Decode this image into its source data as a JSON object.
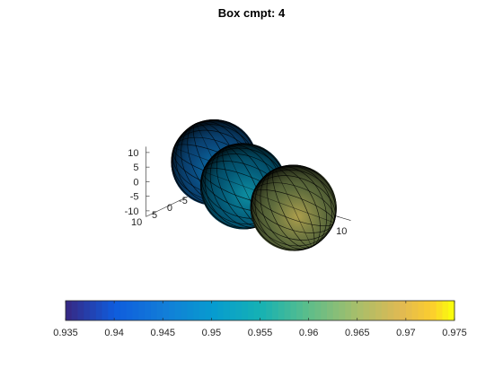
{
  "chart_data": {
    "type": "scatter",
    "title": "Box cmpt: 4",
    "plot_kind": "3d-mesh-surface",
    "axes": {
      "x": {
        "ticks": [
          "-10",
          "0",
          "10"
        ],
        "range": [
          -12,
          12
        ]
      },
      "y": {
        "ticks": [
          "-10",
          "-5",
          "0",
          "5",
          "10"
        ],
        "range": [
          -12,
          12
        ]
      },
      "z": {
        "ticks": [
          "-10",
          "-5",
          "0",
          "5",
          "10"
        ],
        "range": [
          -12,
          12
        ]
      }
    },
    "objects": [
      {
        "name": "sphere",
        "center": [
          -4,
          4,
          7
        ],
        "radius": 6,
        "value": 0.945
      },
      {
        "name": "sphere",
        "center": [
          -2,
          -2,
          -3
        ],
        "radius": 6,
        "value": 0.95
      },
      {
        "name": "sphere",
        "center": [
          6,
          -4,
          -7
        ],
        "radius": 6,
        "value": 0.965
      }
    ],
    "colorbar": {
      "location": "bottom",
      "colormap": "parula",
      "range": [
        0.935,
        0.975
      ],
      "ticks": [
        "0.935",
        "0.94",
        "0.945",
        "0.95",
        "0.955",
        "0.96",
        "0.965",
        "0.97",
        "0.975"
      ]
    },
    "grid": false
  }
}
